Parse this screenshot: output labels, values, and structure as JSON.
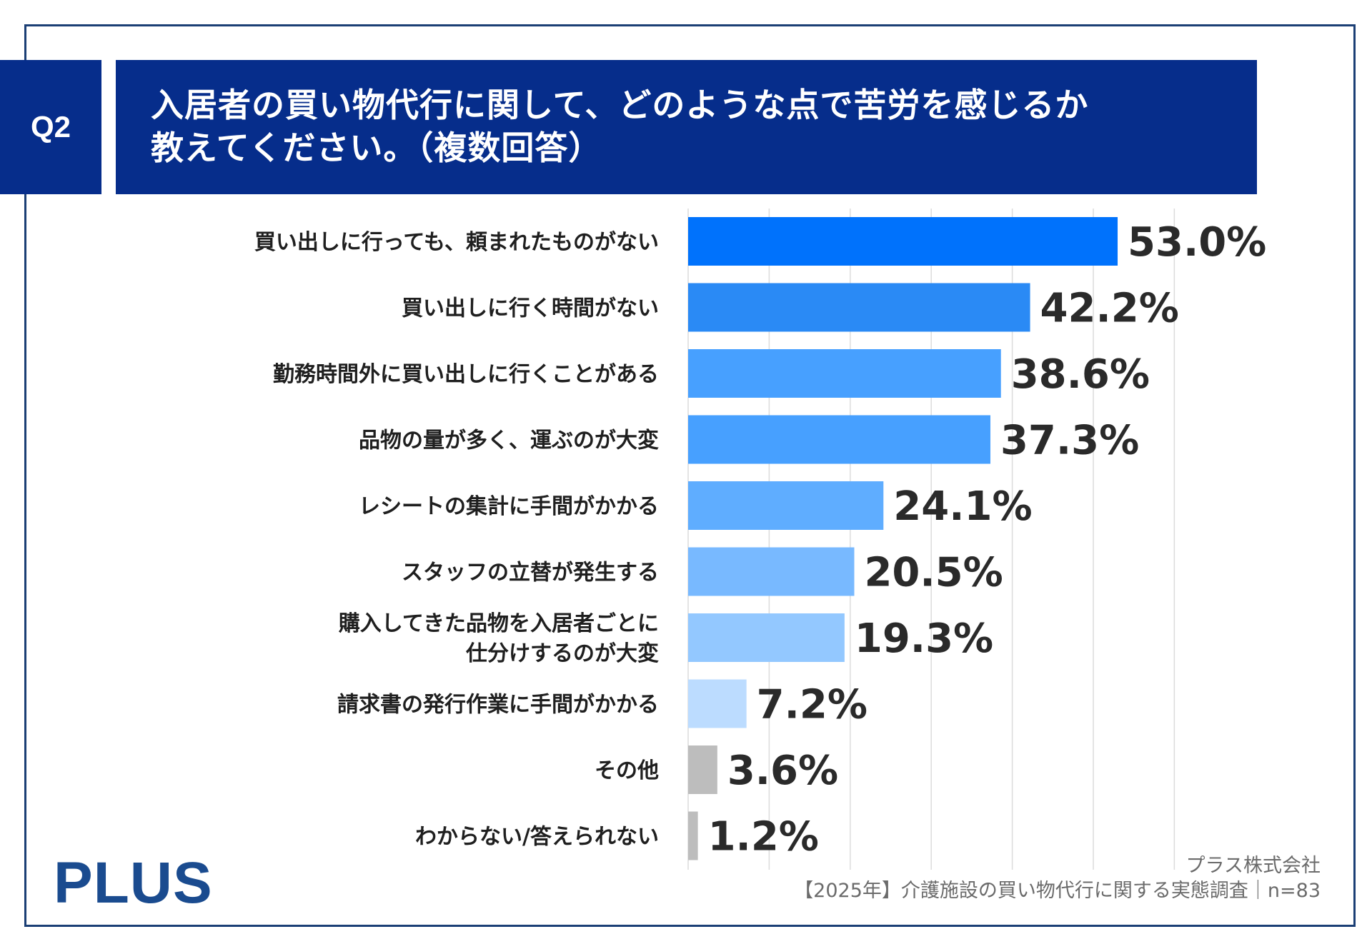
{
  "header": {
    "badge": "Q2",
    "title_line1": "入居者の買い物代行に関して、どのような点で苦労を感じるか",
    "title_line2": "教えてください。（複数回答）"
  },
  "chart_data": {
    "type": "bar",
    "orientation": "horizontal",
    "categories": [
      [
        "買い出しに行っても、頼まれたものがない"
      ],
      [
        "買い出しに行く時間がない"
      ],
      [
        "勤務時間外に買い出しに行くことがある"
      ],
      [
        "品物の量が多く、運ぶのが大変"
      ],
      [
        "レシートの集計に手間がかかる"
      ],
      [
        "スタッフの立替が発生する"
      ],
      [
        "購入してきた品物を入居者ごとに",
        "仕分けするのが大変"
      ],
      [
        "請求書の発行作業に手間がかかる"
      ],
      [
        "その他"
      ],
      [
        "わからない/答えられない"
      ]
    ],
    "values": [
      53.0,
      42.2,
      38.6,
      37.3,
      24.1,
      20.5,
      19.3,
      7.2,
      3.6,
      1.2
    ],
    "value_labels": [
      "53.0%",
      "42.2%",
      "38.6%",
      "37.3%",
      "24.1%",
      "20.5%",
      "19.3%",
      "7.2%",
      "3.6%",
      "1.2%"
    ],
    "colors": [
      "#0072fc",
      "#2a8af5",
      "#47a0ff",
      "#47a0ff",
      "#5fadff",
      "#78b9ff",
      "#93c8ff",
      "#bcdcff",
      "#bdbdbd",
      "#bdbdbd"
    ],
    "xlim": [
      0,
      60
    ],
    "grid": true,
    "gridline_color": "#dcdcdc"
  },
  "footer": {
    "logo": "PLUS",
    "company": "プラス株式会社",
    "survey": "【2025年】介護施設の買い物代行に関する実態調査｜n=83"
  }
}
